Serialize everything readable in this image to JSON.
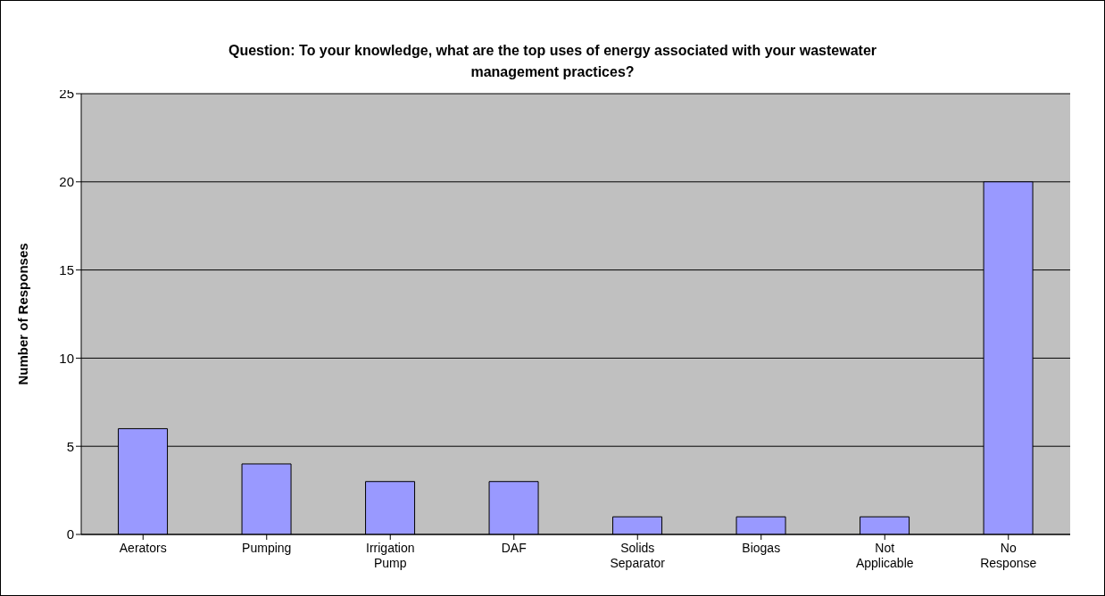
{
  "chart_data": {
    "type": "bar",
    "title": "Question: To your knowledge, what are the top uses of energy associated with your wastewater management practices?",
    "ylabel": "Number of Responses",
    "categories": [
      "Aerators",
      "Pumping",
      "Irrigation Pump",
      "DAF",
      "Solids Separator",
      "Biogas",
      "Not Applicable",
      "No Response"
    ],
    "values": [
      6,
      4,
      3,
      3,
      1,
      1,
      1,
      20
    ],
    "color": "#9999ff",
    "ylim": [
      0,
      25
    ],
    "yticks": [
      0,
      5,
      10,
      15,
      20,
      25
    ],
    "grid": "y"
  }
}
